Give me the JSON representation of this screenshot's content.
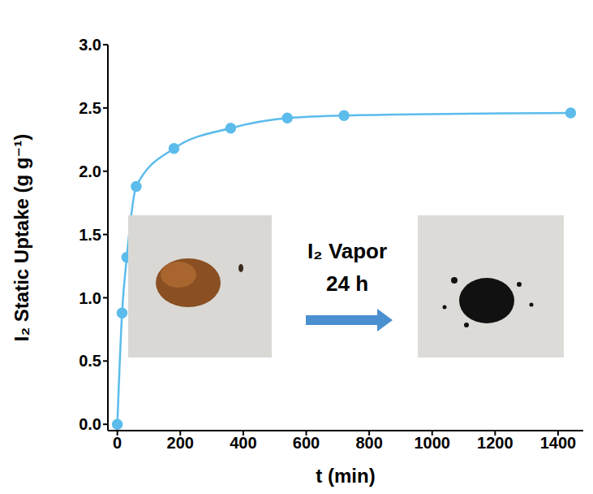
{
  "chart_data": {
    "type": "line",
    "x": [
      0,
      15,
      30,
      60,
      180,
      360,
      540,
      720,
      1440
    ],
    "values": [
      0,
      0.88,
      1.32,
      1.88,
      2.18,
      2.34,
      2.42,
      2.44,
      2.46
    ],
    "color": "#5cbcec",
    "marker": "circle",
    "line_style": "solid",
    "xlabel": "t (min)",
    "ylabel": "I₂ Static Uptake (g g⁻¹)",
    "xlim": [
      -30,
      1480
    ],
    "ylim": [
      -0.05,
      3.0
    ],
    "xticks": [
      0,
      200,
      400,
      600,
      800,
      1000,
      1200,
      1400
    ],
    "yticks": [
      {
        "value": 0,
        "label": "0.0"
      },
      {
        "value": 0.5,
        "label": "0.5"
      },
      {
        "value": 1,
        "label": "1.0"
      },
      {
        "value": 1.5,
        "label": "1.5"
      },
      {
        "value": 2,
        "label": "2.0"
      },
      {
        "value": 2.5,
        "label": "2.5"
      },
      {
        "value": 3,
        "label": "3.0"
      }
    ],
    "grid": false,
    "annotations": [
      "I₂ Vapor",
      "24 h"
    ]
  }
}
